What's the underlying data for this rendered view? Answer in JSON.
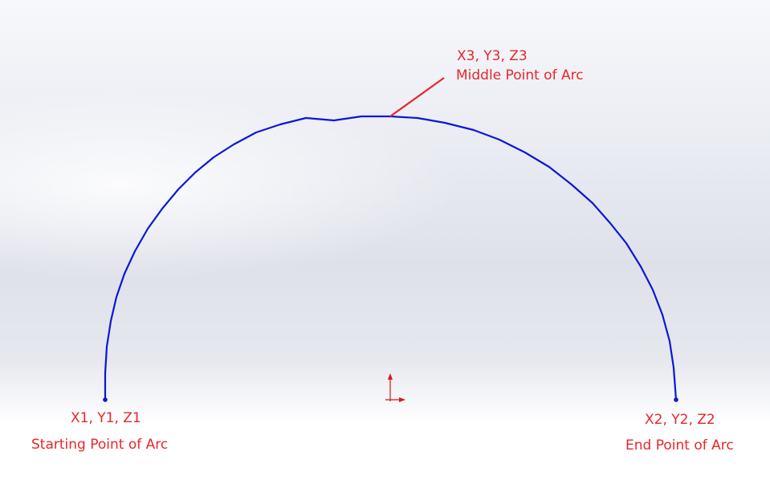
{
  "points": {
    "start": {
      "coords": "X1, Y1, Z1",
      "caption": "Starting Point of Arc"
    },
    "end": {
      "coords": "X2, Y2, Z2",
      "caption": "End Point of Arc"
    },
    "middle": {
      "coords": "X3, Y3, Z3",
      "caption": "Middle Point of Arc"
    }
  },
  "colors": {
    "arc": "#0b17d8",
    "annotation": "#e8262a"
  },
  "icons": {
    "origin": "origin-axes-icon"
  }
}
